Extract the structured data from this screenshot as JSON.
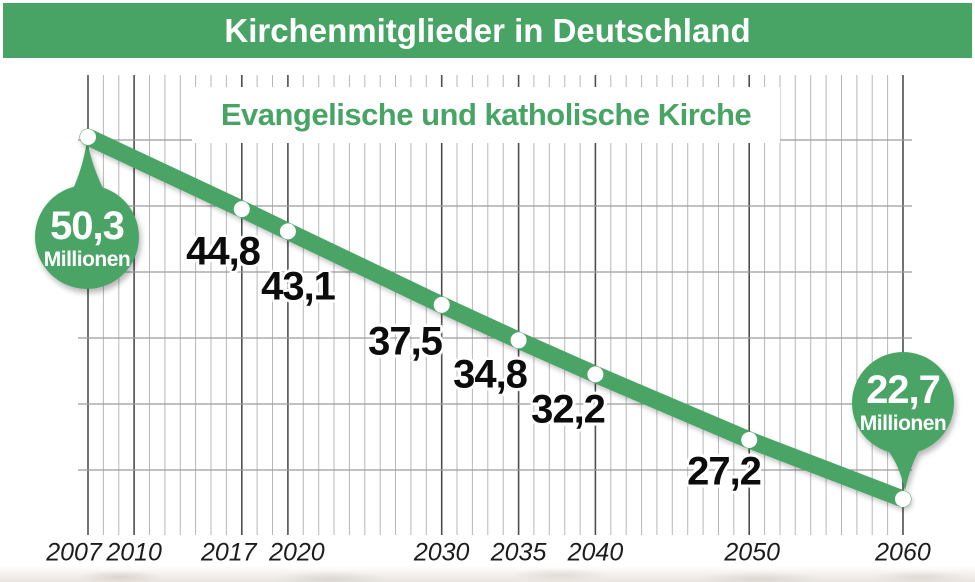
{
  "header": {
    "title": "Kirchenmitglieder in Deutschland"
  },
  "subtitle": "Evangelische und katholische Kirche",
  "balloons": {
    "start": {
      "value": "50,3",
      "unit": "Millionen"
    },
    "end": {
      "value": "22,7",
      "unit": "Millionen"
    }
  },
  "x_axis": {
    "tick_labels": [
      "2007",
      "2010",
      "2017",
      "2020",
      "2030",
      "2035",
      "2040",
      "2050",
      "2060"
    ]
  },
  "colors": {
    "green": "#48A465",
    "title_text": "#ffffff",
    "grid_light": "#b7b7b7",
    "grid_dark": "#4e4e4e",
    "grid_horizontal": "#9c9c9c",
    "label_black": "#0c0c0c",
    "axis_label": "#1c1c1c"
  },
  "chart_data": {
    "type": "line",
    "title": "Kirchenmitglieder in Deutschland",
    "subtitle": "Evangelische und katholische Kirche",
    "unit": "Millionen",
    "x": [
      2007,
      2017,
      2020,
      2030,
      2035,
      2040,
      2050,
      2060
    ],
    "values": [
      50.3,
      44.8,
      43.1,
      37.5,
      34.8,
      32.2,
      27.2,
      22.7
    ],
    "point_labels": [
      "50,3",
      "44,8",
      "43,1",
      "37,5",
      "34,8",
      "32,2",
      "27,2",
      "22,7"
    ],
    "x_tick_years": [
      2007,
      2010,
      2017,
      2020,
      2030,
      2035,
      2040,
      2050,
      2060
    ],
    "xlim": [
      2007,
      2060
    ],
    "ylim": [
      22.7,
      50.3
    ],
    "grid": "vertical line per year, 6 horizontal lines",
    "legend": false,
    "line_color": "#48A465"
  }
}
